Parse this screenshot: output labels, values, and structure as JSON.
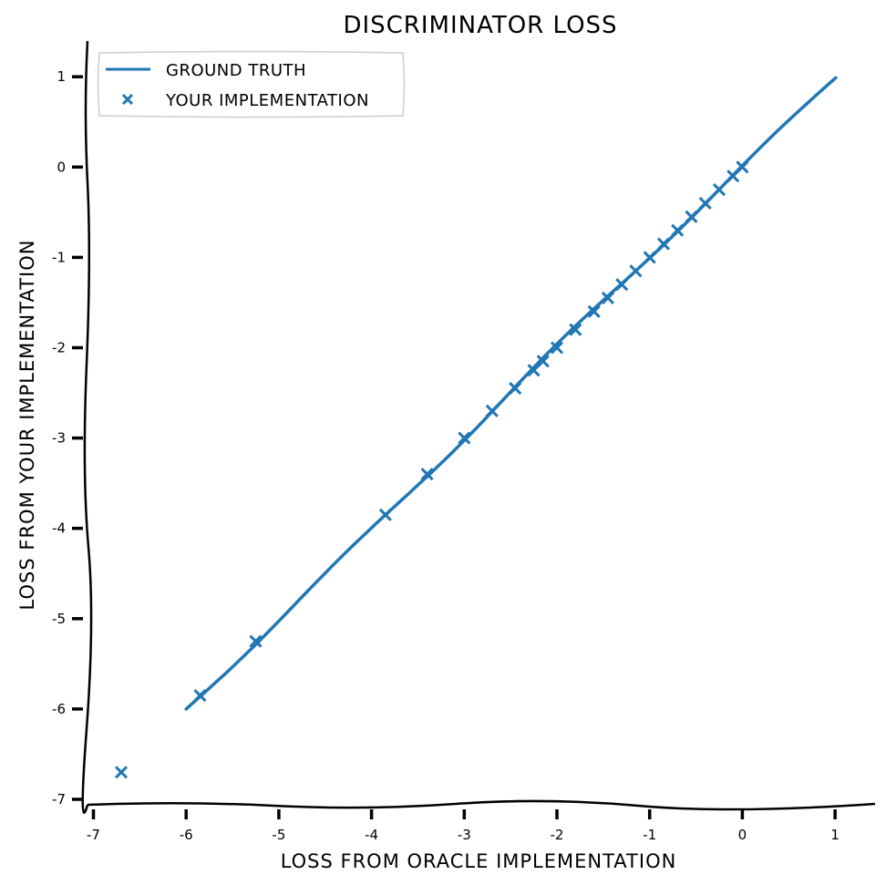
{
  "chart_data": {
    "type": "scatter",
    "title": "DISCRIMINATOR LOSS",
    "xlabel": "LOSS FROM ORACLE IMPLEMENTATION",
    "ylabel": "LOSS FROM YOUR IMPLEMENTATION",
    "xlim": [
      -7,
      1.3
    ],
    "ylim": [
      -7,
      1.3
    ],
    "xticks": [
      -7,
      -6,
      -5,
      -4,
      -3,
      -2,
      -1,
      0,
      1
    ],
    "yticks": [
      -7,
      -6,
      -5,
      -4,
      -3,
      -2,
      -1,
      0,
      1
    ],
    "legend_position": "top-left",
    "color": "#1f77b4",
    "series": [
      {
        "name": "GROUND TRUTH",
        "kind": "line",
        "x": [
          -6,
          1
        ],
        "y": [
          -6,
          1
        ]
      },
      {
        "name": "YOUR IMPLEMENTATION",
        "kind": "scatter",
        "marker": "x",
        "x": [
          -6.7,
          -5.85,
          -5.25,
          -3.85,
          -3.4,
          -3.0,
          -2.7,
          -2.45,
          -2.25,
          -2.15,
          -2.0,
          -1.8,
          -1.6,
          -1.45,
          -1.3,
          -1.15,
          -1.0,
          -0.85,
          -0.7,
          -0.55,
          -0.4,
          -0.25,
          -0.1,
          0.0
        ],
        "y": [
          -6.7,
          -5.85,
          -5.25,
          -3.85,
          -3.4,
          -3.0,
          -2.7,
          -2.45,
          -2.25,
          -2.15,
          -2.0,
          -1.8,
          -1.6,
          -1.45,
          -1.3,
          -1.15,
          -1.0,
          -0.85,
          -0.7,
          -0.55,
          -0.4,
          -0.25,
          -0.1,
          0.0
        ]
      }
    ]
  }
}
